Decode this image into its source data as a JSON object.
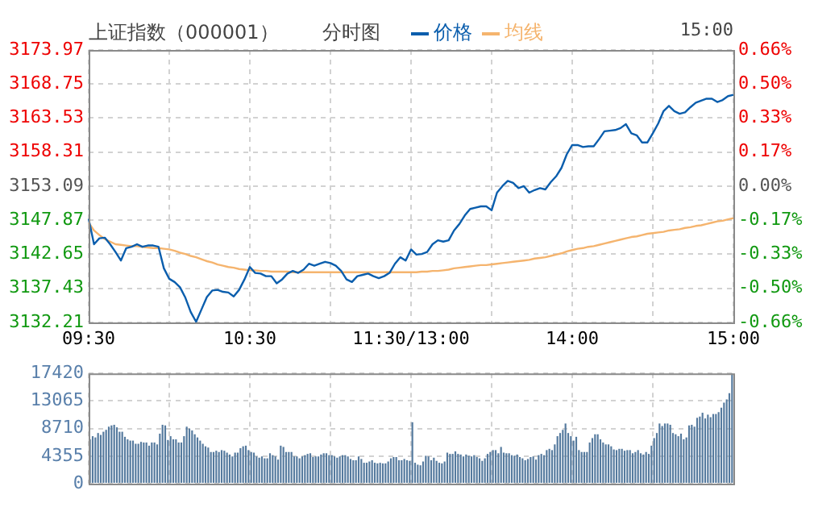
{
  "chart_data": [
    {
      "type": "line",
      "title": "上证指数（000001）",
      "subtitle": "分时图",
      "annotations": [
        "15:00"
      ],
      "legend": "top",
      "grid": true,
      "categories": [
        "09:30",
        null,
        null,
        null,
        null,
        null,
        null,
        null,
        null,
        null,
        null,
        null,
        null,
        null,
        null,
        null,
        null,
        null,
        null,
        null,
        null,
        null,
        null,
        null,
        null,
        null,
        null,
        null,
        null,
        null,
        "10:30",
        null,
        null,
        null,
        null,
        null,
        null,
        null,
        null,
        null,
        null,
        null,
        null,
        null,
        null,
        null,
        null,
        null,
        null,
        null,
        null,
        null,
        null,
        null,
        null,
        null,
        null,
        null,
        null,
        null,
        "11:30/13:00",
        null,
        null,
        null,
        null,
        null,
        null,
        null,
        null,
        null,
        null,
        null,
        null,
        null,
        null,
        null,
        null,
        null,
        null,
        null,
        null,
        null,
        null,
        null,
        null,
        null,
        null,
        null,
        null,
        null,
        "14:00",
        null,
        null,
        null,
        null,
        null,
        null,
        null,
        null,
        null,
        null,
        null,
        null,
        null,
        null,
        null,
        null,
        null,
        null,
        null,
        null,
        null,
        null,
        null,
        null,
        null,
        null,
        null,
        null,
        null,
        "15:00"
      ],
      "ylim": [
        3132.21,
        3173.97
      ],
      "yticks": [
        3132.21,
        3137.43,
        3142.65,
        3147.87,
        3153.09,
        3158.31,
        3163.53,
        3168.75,
        3173.97
      ],
      "y2lim": [
        -0.66,
        0.66
      ],
      "y2ticks": [
        {
          "value": -0.66,
          "label": "-0.66%"
        },
        {
          "value": -0.495,
          "label": "-0.50%"
        },
        {
          "value": -0.33,
          "label": "-0.33%"
        },
        {
          "value": -0.165,
          "label": "-0.17%"
        },
        {
          "value": 0,
          "label": "0.00%"
        },
        {
          "value": 0.165,
          "label": "0.17%"
        },
        {
          "value": 0.33,
          "label": "0.33%"
        },
        {
          "value": 0.495,
          "label": "0.50%"
        },
        {
          "value": 0.66,
          "label": "0.66%"
        }
      ],
      "series": [
        {
          "name": "价格",
          "color": "#0b5ead",
          "values": [
            3148.1,
            3144.2,
            3145.1,
            3145.2,
            3144.2,
            3143.0,
            3141.7,
            3143.6,
            3143.8,
            3144.2,
            3143.8,
            3144.0,
            3144.0,
            3143.8,
            3140.5,
            3138.9,
            3138.4,
            3137.6,
            3136.0,
            3133.8,
            3132.3,
            3134.2,
            3136.1,
            3137.1,
            3137.2,
            3136.9,
            3136.8,
            3136.2,
            3137.2,
            3138.8,
            3140.7,
            3139.8,
            3139.7,
            3139.3,
            3139.3,
            3138.2,
            3138.8,
            3139.7,
            3140.1,
            3139.8,
            3140.3,
            3141.2,
            3140.9,
            3141.2,
            3141.5,
            3141.3,
            3140.9,
            3140.1,
            3138.8,
            3138.4,
            3139.3,
            3139.5,
            3139.7,
            3139.3,
            3139.0,
            3139.3,
            3139.8,
            3141.2,
            3142.2,
            3141.7,
            3143.4,
            3142.6,
            3142.7,
            3143.0,
            3144.2,
            3144.8,
            3144.6,
            3144.8,
            3146.3,
            3147.3,
            3148.6,
            3149.6,
            3149.8,
            3150.0,
            3150.0,
            3149.4,
            3152.1,
            3153.1,
            3153.9,
            3153.6,
            3152.8,
            3153.1,
            3152.1,
            3152.5,
            3152.8,
            3152.6,
            3153.7,
            3154.6,
            3155.9,
            3158.0,
            3159.4,
            3159.4,
            3159.1,
            3159.2,
            3159.2,
            3160.3,
            3161.5,
            3161.6,
            3161.7,
            3162.0,
            3162.6,
            3161.2,
            3160.9,
            3159.8,
            3159.8,
            3161.2,
            3162.7,
            3164.6,
            3165.4,
            3164.6,
            3164.2,
            3164.4,
            3165.2,
            3165.9,
            3166.2,
            3166.5,
            3166.5,
            3166.0,
            3166.3,
            3166.9,
            3167.1
          ]
        },
        {
          "name": "均线",
          "color": "#f5b46e",
          "values": [
            3147.5,
            3146.3,
            3145.6,
            3145.0,
            3144.6,
            3144.2,
            3144.1,
            3144.0,
            3143.9,
            3143.9,
            3143.8,
            3143.7,
            3143.6,
            3143.6,
            3143.5,
            3143.4,
            3143.2,
            3142.9,
            3142.7,
            3142.4,
            3142.2,
            3141.9,
            3141.6,
            3141.4,
            3141.1,
            3140.9,
            3140.7,
            3140.6,
            3140.4,
            3140.3,
            3140.2,
            3140.2,
            3140.1,
            3140.1,
            3140.0,
            3140.0,
            3140.0,
            3140.0,
            3139.9,
            3139.9,
            3139.9,
            3139.9,
            3139.9,
            3139.9,
            3139.9,
            3139.9,
            3139.9,
            3139.9,
            3139.9,
            3139.9,
            3139.9,
            3139.9,
            3139.9,
            3139.9,
            3139.9,
            3139.9,
            3139.9,
            3139.9,
            3139.9,
            3139.9,
            3139.9,
            3139.9,
            3140.0,
            3140.0,
            3140.1,
            3140.1,
            3140.2,
            3140.3,
            3140.5,
            3140.6,
            3140.7,
            3140.8,
            3140.9,
            3141.0,
            3141.0,
            3141.1,
            3141.2,
            3141.3,
            3141.4,
            3141.5,
            3141.6,
            3141.7,
            3141.8,
            3142.0,
            3142.1,
            3142.2,
            3142.4,
            3142.6,
            3142.8,
            3143.1,
            3143.3,
            3143.5,
            3143.6,
            3143.8,
            3143.9,
            3144.1,
            3144.3,
            3144.5,
            3144.7,
            3144.9,
            3145.1,
            3145.3,
            3145.4,
            3145.6,
            3145.8,
            3145.9,
            3146.0,
            3146.1,
            3146.3,
            3146.4,
            3146.5,
            3146.7,
            3146.8,
            3147.0,
            3147.1,
            3147.3,
            3147.5,
            3147.7,
            3147.8,
            3148.0,
            3148.2
          ]
        }
      ]
    },
    {
      "type": "bar",
      "grid": true,
      "tick_labels": "y",
      "color": "#557a9e",
      "ylim": [
        0,
        17420
      ],
      "yticks": [
        0,
        4355,
        8710,
        13065,
        17420
      ],
      "categories": [
        null,
        null,
        null,
        null,
        null,
        null,
        null,
        null,
        null,
        null,
        null,
        null,
        null,
        null,
        null,
        null,
        null,
        null,
        null,
        null,
        null,
        null,
        null,
        null,
        null,
        null,
        null,
        null,
        null,
        null,
        null,
        null,
        null,
        null,
        null,
        null,
        null,
        null,
        null,
        null,
        null,
        null,
        null,
        null,
        null,
        null,
        null,
        null,
        null,
        null,
        null,
        null,
        null,
        null,
        null,
        null,
        null,
        null,
        null,
        null,
        null,
        null,
        null,
        null,
        null,
        null,
        null,
        null,
        null,
        null,
        null,
        null,
        null,
        null,
        null,
        null,
        null,
        null,
        null,
        null,
        null,
        null,
        null,
        null,
        null,
        null,
        null,
        null,
        null,
        null,
        null,
        null,
        null,
        null,
        null,
        null,
        null,
        null,
        null,
        null,
        null,
        null,
        null,
        null,
        null,
        null,
        null,
        null,
        null,
        null,
        null,
        null,
        null,
        null,
        null,
        null,
        null,
        null,
        null,
        null,
        null,
        null,
        null,
        null,
        null,
        null,
        null,
        null,
        null,
        null,
        null,
        null,
        null,
        null,
        null,
        null,
        null,
        null,
        null,
        null,
        null,
        null,
        null,
        null,
        null,
        null,
        null,
        null,
        null,
        null,
        null,
        null,
        null,
        null,
        null,
        null,
        null,
        null,
        null,
        null,
        null,
        null,
        null,
        null,
        null,
        null,
        null,
        null,
        null,
        null,
        null,
        null,
        null,
        null,
        null,
        null,
        null,
        null,
        null,
        null,
        null,
        null,
        null,
        null,
        null,
        null,
        null,
        null,
        null,
        null,
        null,
        null,
        null,
        null,
        null,
        null,
        null,
        null,
        null,
        null,
        null,
        null,
        null,
        null,
        null,
        null,
        null,
        null,
        null,
        null,
        null,
        null,
        null,
        null,
        null,
        null,
        null,
        null,
        null,
        null,
        null,
        null,
        null,
        null,
        null,
        null,
        null,
        null,
        null,
        null,
        null,
        null,
        null,
        null,
        null,
        null,
        null,
        null,
        null,
        null
      ],
      "values": [
        7000,
        7500,
        7300,
        8000,
        7700,
        8200,
        8500,
        9000,
        9200,
        9300,
        8900,
        8200,
        8200,
        7400,
        7000,
        6800,
        6800,
        6300,
        6300,
        6600,
        6500,
        6500,
        6000,
        6500,
        6500,
        6200,
        7900,
        9300,
        9200,
        6900,
        7500,
        7000,
        7000,
        6500,
        6500,
        7500,
        9000,
        8700,
        8400,
        7800,
        7300,
        6800,
        6300,
        5900,
        5700,
        5000,
        5000,
        5200,
        5000,
        5300,
        5200,
        4900,
        4600,
        4300,
        4900,
        4900,
        5600,
        5900,
        6000,
        5300,
        5000,
        4900,
        4300,
        4100,
        4300,
        4000,
        4000,
        4800,
        4500,
        4300,
        3800,
        6000,
        5800,
        5000,
        5000,
        5000,
        4300,
        4300,
        4000,
        4300,
        4500,
        4700,
        4800,
        4200,
        4300,
        4300,
        4600,
        4800,
        4800,
        4500,
        4500,
        4300,
        4100,
        4300,
        4500,
        4500,
        4300,
        3900,
        3700,
        3700,
        4300,
        3900,
        3300,
        3300,
        3500,
        3700,
        3300,
        3200,
        3300,
        3200,
        3200,
        3500,
        4000,
        4200,
        4200,
        3700,
        3700,
        3900,
        3700,
        3600,
        9700,
        3300,
        3000,
        2900,
        3500,
        4400,
        4300,
        3700,
        4100,
        3600,
        3300,
        3200,
        3500,
        4900,
        4700,
        4700,
        5100,
        4700,
        4600,
        4300,
        4600,
        4400,
        4300,
        4500,
        4200,
        4000,
        3600,
        4000,
        4700,
        5000,
        5300,
        5300,
        4800,
        5800,
        4900,
        4800,
        4800,
        4500,
        4400,
        4600,
        4200,
        4000,
        3700,
        3900,
        4200,
        4300,
        3800,
        4500,
        4700,
        4500,
        5300,
        5500,
        5300,
        6200,
        7500,
        8000,
        8500,
        9500,
        8000,
        7500,
        6800,
        7400,
        5300,
        5000,
        5000,
        5000,
        6500,
        7200,
        7800,
        7800,
        7000,
        6500,
        6200,
        6200,
        5900,
        5400,
        5300,
        5500,
        5500,
        5200,
        5300,
        5300,
        4800,
        5000,
        5300,
        4800,
        4600,
        5000,
        4700,
        6000,
        7200,
        8000,
        9500,
        9100,
        9500,
        9500,
        9300,
        8000,
        7800,
        7500,
        7900,
        7000,
        7300,
        9200,
        9300,
        9000,
        10400,
        10600,
        11200,
        10300,
        10900,
        10500,
        11000,
        11000,
        11300,
        12000,
        12800,
        13300,
        14300,
        17400
      ]
    }
  ]
}
